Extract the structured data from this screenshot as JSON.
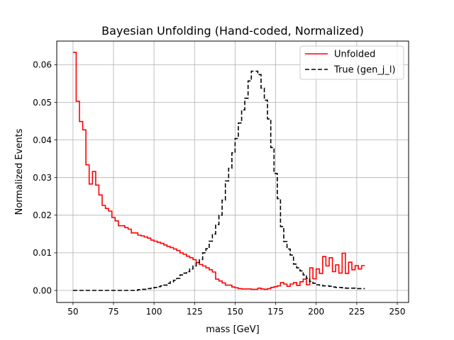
{
  "chart_data": {
    "type": "line",
    "step": true,
    "title": "Bayesian Unfolding (Hand-coded, Normalized)",
    "xlabel": "mass [GeV]",
    "ylabel": "Normalized Events",
    "xlim": [
      40,
      257
    ],
    "ylim": [
      -0.0032,
      0.0663
    ],
    "xticks": [
      50,
      75,
      100,
      125,
      150,
      175,
      200,
      225,
      250
    ],
    "yticks": [
      0.0,
      0.01,
      0.02,
      0.03,
      0.04,
      0.05,
      0.06
    ],
    "ytick_labels": [
      "0.00",
      "0.01",
      "0.02",
      "0.03",
      "0.04",
      "0.05",
      "0.06"
    ],
    "grid": true,
    "legend_position": "top-right",
    "bin_edges_start": 50,
    "bin_width": 2,
    "series": [
      {
        "name": "Unfolded",
        "color": "#ff0000",
        "style": "solid",
        "values": [
          0.0633,
          0.0503,
          0.0449,
          0.0427,
          0.0334,
          0.0283,
          0.0316,
          0.028,
          0.0254,
          0.0226,
          0.0218,
          0.0211,
          0.0194,
          0.0185,
          0.0172,
          0.0172,
          0.0167,
          0.0163,
          0.0153,
          0.0153,
          0.0147,
          0.0145,
          0.0142,
          0.0139,
          0.0134,
          0.0131,
          0.0128,
          0.0125,
          0.0121,
          0.0117,
          0.0114,
          0.011,
          0.0106,
          0.01,
          0.0096,
          0.0091,
          0.0087,
          0.0082,
          0.0074,
          0.0069,
          0.0065,
          0.006,
          0.0055,
          0.0049,
          0.003,
          0.0025,
          0.002,
          0.0014,
          0.0014,
          0.0009,
          0.0007,
          0.0005,
          0.0004,
          0.0004,
          0.0004,
          0.0003,
          0.0003,
          0.0006,
          0.0004,
          0.0003,
          0.0005,
          0.0008,
          0.001,
          0.0012,
          0.0021,
          0.0017,
          0.0011,
          0.0017,
          0.0021,
          0.0013,
          0.0023,
          0.003,
          0.0015,
          0.006,
          0.0031,
          0.0057,
          0.0045,
          0.009,
          0.0065,
          0.0087,
          0.005,
          0.0068,
          0.0046,
          0.0099,
          0.0045,
          0.0075,
          0.0055,
          0.0066,
          0.0057,
          0.0066
        ]
      },
      {
        "name": "True (gen_j_l)",
        "color": "#000000",
        "style": "dashed",
        "values": [
          0.0,
          0.0,
          0.0,
          0.0,
          0.0,
          0.0,
          0.0,
          0.0,
          0.0,
          0.0,
          0.0,
          0.0,
          0.0,
          0.0,
          0.0,
          0.0,
          0.0,
          0.0,
          0.0,
          0.0,
          0.0002,
          0.0003,
          0.0003,
          0.0005,
          0.0006,
          0.0008,
          0.001,
          0.0012,
          0.0014,
          0.0019,
          0.0023,
          0.0027,
          0.0032,
          0.0041,
          0.0046,
          0.005,
          0.0057,
          0.0065,
          0.0074,
          0.0082,
          0.01,
          0.0111,
          0.0131,
          0.015,
          0.0175,
          0.02,
          0.024,
          0.0291,
          0.0325,
          0.0366,
          0.0404,
          0.0445,
          0.048,
          0.0511,
          0.0557,
          0.0583,
          0.0583,
          0.0574,
          0.0538,
          0.0506,
          0.0456,
          0.038,
          0.0311,
          0.0244,
          0.017,
          0.013,
          0.011,
          0.0094,
          0.007,
          0.006,
          0.0052,
          0.0041,
          0.0032,
          0.0024,
          0.0019,
          0.0015,
          0.0014,
          0.0012,
          0.0012,
          0.0011,
          0.0009,
          0.0008,
          0.0008,
          0.0007,
          0.0006,
          0.0006,
          0.0006,
          0.0005,
          0.0005,
          0.0005
        ]
      }
    ]
  }
}
